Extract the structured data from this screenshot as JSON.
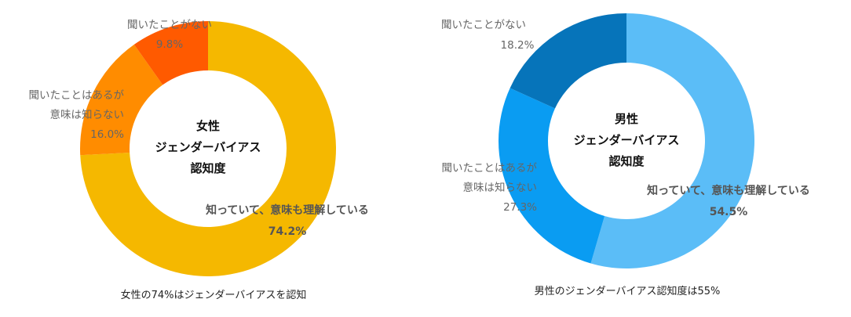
{
  "chart_data": [
    {
      "type": "pie",
      "variant": "donut",
      "center_title": [
        "女性",
        "ジェンダーバイアス",
        "認知度"
      ],
      "caption": "女性の74%はジェンダーバイアスを認知",
      "slices": [
        {
          "label_lines": [
            "知っていて、意味も理解している"
          ],
          "value": 74.2,
          "value_label": "74.2%",
          "color": "#F5B800"
        },
        {
          "label_lines": [
            "聞いたことはあるが",
            "意味は知らない"
          ],
          "value": 16.0,
          "value_label": "16.0%",
          "color": "#FF8C00"
        },
        {
          "label_lines": [
            "聞いたことがない"
          ],
          "value": 9.8,
          "value_label": "9.8%",
          "color": "#FF5A00"
        }
      ]
    },
    {
      "type": "pie",
      "variant": "donut",
      "center_title": [
        "男性",
        "ジェンダーバイアス",
        "認知度"
      ],
      "caption": "男性のジェンダーバイアス認知度は55%",
      "slices": [
        {
          "label_lines": [
            "知っていて、意味も理解している"
          ],
          "value": 54.5,
          "value_label": "54.5%",
          "color": "#5BBDF7"
        },
        {
          "label_lines": [
            "聞いたことはあるが",
            "意味は知らない"
          ],
          "value": 27.3,
          "value_label": "27.3%",
          "color": "#0A9CF2"
        },
        {
          "label_lines": [
            "聞いたことがない"
          ],
          "value": 18.2,
          "value_label": "18.2%",
          "color": "#0674BA"
        }
      ]
    }
  ]
}
